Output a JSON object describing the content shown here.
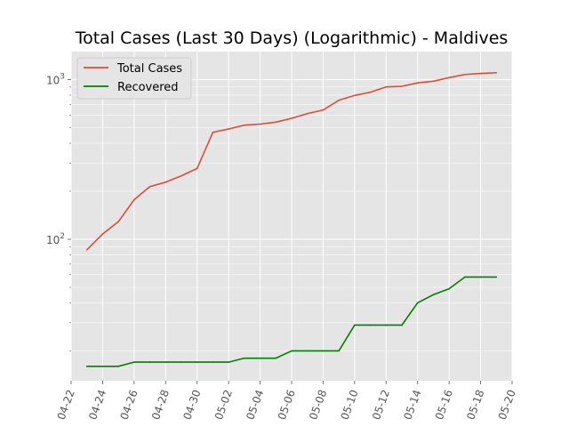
{
  "chart_data": {
    "type": "line",
    "title": "Total Cases (Last 30 Days) (Logarithmic) - Maldives",
    "xlabel": "",
    "ylabel": "",
    "yscale": "log",
    "grid": true,
    "legend_position": "top-left",
    "xlim": [
      "2020-04-22",
      "2020-05-20"
    ],
    "ylim": [
      13,
      1500
    ],
    "x_tick_labels": [
      "04-22",
      "04-24",
      "04-26",
      "04-28",
      "04-30",
      "05-02",
      "05-04",
      "05-06",
      "05-08",
      "05-10",
      "05-12",
      "05-14",
      "05-16",
      "05-18",
      "05-20"
    ],
    "x_tick_dates": [
      "2020-04-22",
      "2020-04-24",
      "2020-04-26",
      "2020-04-28",
      "2020-04-30",
      "2020-05-02",
      "2020-05-04",
      "2020-05-06",
      "2020-05-08",
      "2020-05-10",
      "2020-05-12",
      "2020-05-14",
      "2020-05-16",
      "2020-05-18",
      "2020-05-20"
    ],
    "y_ticks": [
      {
        "value": 100,
        "base": "10",
        "exp": "2"
      },
      {
        "value": 1000,
        "base": "10",
        "exp": "3"
      }
    ],
    "x": [
      "2020-04-23",
      "2020-04-24",
      "2020-04-25",
      "2020-04-26",
      "2020-04-27",
      "2020-04-28",
      "2020-04-29",
      "2020-04-30",
      "2020-05-01",
      "2020-05-02",
      "2020-05-03",
      "2020-05-04",
      "2020-05-05",
      "2020-05-06",
      "2020-05-07",
      "2020-05-08",
      "2020-05-09",
      "2020-05-10",
      "2020-05-11",
      "2020-05-12",
      "2020-05-13",
      "2020-05-14",
      "2020-05-15",
      "2020-05-16",
      "2020-05-17",
      "2020-05-18",
      "2020-05-19"
    ],
    "series": [
      {
        "name": "Total Cases",
        "color": "#e24a33",
        "values": [
          86,
          108,
          129,
          177,
          214,
          228,
          250,
          278,
          468,
          491,
          519,
          527,
          542,
          573,
          613,
          646,
          744,
          797,
          835,
          901,
          909,
          955,
          978,
          1031,
          1078,
          1094,
          1106
        ]
      },
      {
        "name": "Recovered",
        "color": "#008000",
        "values": [
          16,
          16,
          16,
          17,
          17,
          17,
          17,
          17,
          17,
          17,
          18,
          18,
          18,
          20,
          20,
          20,
          20,
          29,
          29,
          29,
          29,
          40,
          45,
          49,
          58,
          58,
          58
        ]
      }
    ]
  }
}
